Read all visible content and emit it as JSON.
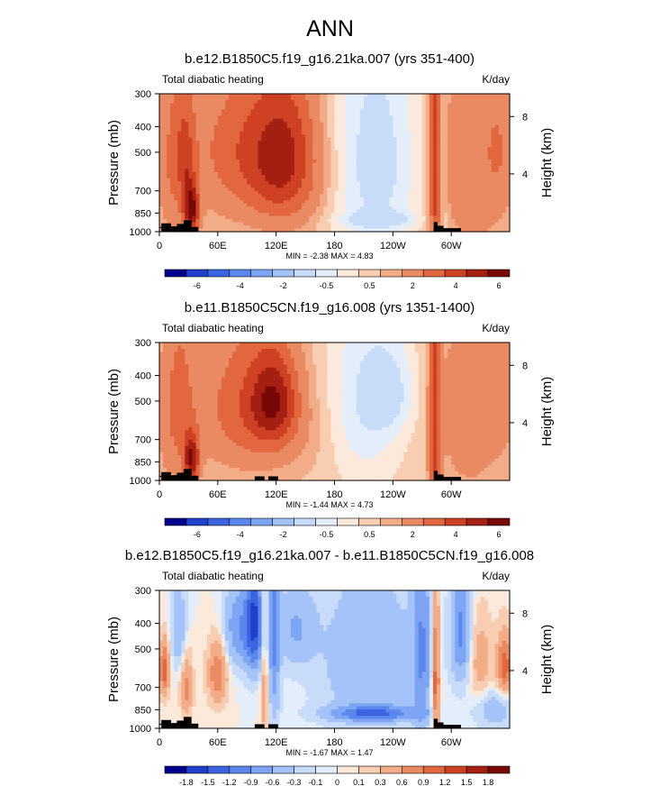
{
  "page_title": "ANN",
  "chart_data": [
    {
      "type": "heatmap",
      "title": "b.e12.B1850C5.f19_g16.21ka.007 (yrs 351-400)",
      "left_label": "Total diabatic heating",
      "units_label": "K/day",
      "ylabel": "Pressure (mb)",
      "ylabel_right": "Height (km)",
      "x_ticks": [
        "0",
        "60E",
        "120E",
        "180",
        "120W",
        "60W"
      ],
      "x_tick_values": [
        0,
        60,
        120,
        180,
        240,
        300
      ],
      "xlim": [
        0,
        360
      ],
      "y_ticks": [
        "300",
        "400",
        "500",
        "700",
        "850",
        "1000"
      ],
      "y_tick_values": [
        300,
        400,
        500,
        700,
        850,
        1000
      ],
      "ylim": [
        1000,
        300
      ],
      "right_ticks": [
        "8",
        "4"
      ],
      "right_tick_pressures": [
        366,
        604
      ],
      "stats_text": "MIN = -2.38  MAX =  4.83",
      "min": -2.38,
      "max": 4.83,
      "colorbar_labels": [
        "-6",
        "-4",
        "-2",
        "-0.5",
        "0.5",
        "2",
        "4",
        "6"
      ],
      "colorbar_colors": [
        "#00008f",
        "#1f3fcc",
        "#3c64e0",
        "#5b86ec",
        "#7ea5f3",
        "#a4c3f8",
        "#c8dcfa",
        "#e4eefb",
        "#fbe9dc",
        "#f8cdb1",
        "#f2ac88",
        "#ea8a62",
        "#e2673f",
        "#cf4123",
        "#a51f12",
        "#780808"
      ],
      "blocks": [
        {
          "x0": 0,
          "x1": 2,
          "p0": 970,
          "p1": 960
        },
        {
          "x0": 2,
          "x1": 12,
          "p0": 1000,
          "p1": 930
        },
        {
          "x0": 12,
          "x1": 18,
          "p0": 1000,
          "p1": 955
        },
        {
          "x0": 18,
          "x1": 25,
          "p0": 1000,
          "p1": 935
        },
        {
          "x0": 25,
          "x1": 33,
          "p0": 1000,
          "p1": 905
        },
        {
          "x0": 33,
          "x1": 40,
          "p0": 1000,
          "p1": 960
        },
        {
          "x0": 282,
          "x1": 286,
          "p0": 1000,
          "p1": 920
        },
        {
          "x0": 286,
          "x1": 292,
          "p0": 1000,
          "p1": 950
        },
        {
          "x0": 292,
          "x1": 310,
          "p0": 1000,
          "p1": 970
        }
      ],
      "features": [
        {
          "lon": 24,
          "p": 490,
          "w": 14,
          "h": 380,
          "v": 1.4
        },
        {
          "lon": 33,
          "p": 840,
          "w": 8,
          "h": 180,
          "v": 4.5
        },
        {
          "lon": 28,
          "p": 560,
          "w": 8,
          "h": 240,
          "v": 1.2
        },
        {
          "lon": 10,
          "p": 560,
          "w": 14,
          "h": 480,
          "v": 1.0
        },
        {
          "lon": 85,
          "p": 450,
          "w": 55,
          "h": 300,
          "v": 2.0
        },
        {
          "lon": 130,
          "p": 520,
          "w": 35,
          "h": 350,
          "v": 3.0
        },
        {
          "lon": 100,
          "p": 720,
          "w": 70,
          "h": 300,
          "v": 0.8
        },
        {
          "lon": 222,
          "p": 560,
          "w": 48,
          "h": 600,
          "v": -1.6
        },
        {
          "lon": 225,
          "p": 900,
          "w": 40,
          "h": 60,
          "v": -1.0
        },
        {
          "lon": 283,
          "p": 600,
          "w": 6,
          "h": 700,
          "v": 3.0
        },
        {
          "lon": 292,
          "p": 600,
          "w": 4,
          "h": 700,
          "v": -0.7
        },
        {
          "lon": 320,
          "p": 560,
          "w": 42,
          "h": 600,
          "v": 1.4
        },
        {
          "lon": 350,
          "p": 480,
          "w": 16,
          "h": 300,
          "v": 1.0
        }
      ]
    },
    {
      "type": "heatmap",
      "title": "b.e11.B1850C5CN.f19_g16.008 (yrs 1351-1400)",
      "left_label": "Total diabatic heating",
      "units_label": "K/day",
      "ylabel": "Pressure (mb)",
      "ylabel_right": "Height (km)",
      "x_ticks": [
        "0",
        "60E",
        "120E",
        "180",
        "120W",
        "60W"
      ],
      "x_tick_values": [
        0,
        60,
        120,
        180,
        240,
        300
      ],
      "xlim": [
        0,
        360
      ],
      "y_ticks": [
        "300",
        "400",
        "500",
        "700",
        "850",
        "1000"
      ],
      "y_tick_values": [
        300,
        400,
        500,
        700,
        850,
        1000
      ],
      "ylim": [
        1000,
        300
      ],
      "right_ticks": [
        "8",
        "4"
      ],
      "right_tick_pressures": [
        366,
        604
      ],
      "stats_text": "MIN = -1.44  MAX =  4.73",
      "min": -1.44,
      "max": 4.73,
      "colorbar_labels": [
        "-6",
        "-4",
        "-2",
        "-0.5",
        "0.5",
        "2",
        "4",
        "6"
      ],
      "colorbar_colors": [
        "#00008f",
        "#1f3fcc",
        "#3c64e0",
        "#5b86ec",
        "#7ea5f3",
        "#a4c3f8",
        "#c8dcfa",
        "#e4eefb",
        "#fbe9dc",
        "#f8cdb1",
        "#f2ac88",
        "#ea8a62",
        "#e2673f",
        "#cf4123",
        "#a51f12",
        "#780808"
      ],
      "blocks": [
        {
          "x0": 0,
          "x1": 2,
          "p0": 970,
          "p1": 960
        },
        {
          "x0": 2,
          "x1": 12,
          "p0": 1000,
          "p1": 930
        },
        {
          "x0": 12,
          "x1": 18,
          "p0": 1000,
          "p1": 955
        },
        {
          "x0": 18,
          "x1": 25,
          "p0": 1000,
          "p1": 935
        },
        {
          "x0": 25,
          "x1": 33,
          "p0": 1000,
          "p1": 905
        },
        {
          "x0": 33,
          "x1": 40,
          "p0": 1000,
          "p1": 960
        },
        {
          "x0": 98,
          "x1": 108,
          "p0": 1000,
          "p1": 965
        },
        {
          "x0": 112,
          "x1": 122,
          "p0": 1000,
          "p1": 965
        },
        {
          "x0": 282,
          "x1": 286,
          "p0": 1000,
          "p1": 920
        },
        {
          "x0": 286,
          "x1": 292,
          "p0": 1000,
          "p1": 950
        },
        {
          "x0": 292,
          "x1": 310,
          "p0": 1000,
          "p1": 970
        }
      ],
      "features": [
        {
          "lon": 24,
          "p": 490,
          "w": 14,
          "h": 380,
          "v": 1.4
        },
        {
          "lon": 33,
          "p": 840,
          "w": 8,
          "h": 180,
          "v": 4.4
        },
        {
          "lon": 10,
          "p": 560,
          "w": 14,
          "h": 480,
          "v": 1.0
        },
        {
          "lon": 90,
          "p": 470,
          "w": 50,
          "h": 320,
          "v": 2.0
        },
        {
          "lon": 118,
          "p": 500,
          "w": 24,
          "h": 200,
          "v": 3.2
        },
        {
          "lon": 105,
          "p": 700,
          "w": 70,
          "h": 300,
          "v": 0.8
        },
        {
          "lon": 210,
          "p": 520,
          "w": 40,
          "h": 450,
          "v": -1.3
        },
        {
          "lon": 240,
          "p": 460,
          "w": 25,
          "h": 180,
          "v": -1.0
        },
        {
          "lon": 283,
          "p": 600,
          "w": 6,
          "h": 700,
          "v": 3.0
        },
        {
          "lon": 320,
          "p": 560,
          "w": 40,
          "h": 600,
          "v": 1.2
        },
        {
          "lon": 352,
          "p": 460,
          "w": 14,
          "h": 260,
          "v": 1.0
        }
      ]
    },
    {
      "type": "heatmap",
      "title": "b.e12.B1850C5.f19_g16.21ka.007 - b.e11.B1850C5CN.f19_g16.008",
      "left_label": "Total diabatic heating",
      "units_label": "K/day",
      "ylabel": "Pressure (mb)",
      "ylabel_right": "Height (km)",
      "x_ticks": [
        "0",
        "60E",
        "120E",
        "180",
        "120W",
        "60W"
      ],
      "x_tick_values": [
        0,
        60,
        120,
        180,
        240,
        300
      ],
      "xlim": [
        0,
        360
      ],
      "y_ticks": [
        "300",
        "400",
        "500",
        "700",
        "850",
        "1000"
      ],
      "y_tick_values": [
        300,
        400,
        500,
        700,
        850,
        1000
      ],
      "ylim": [
        1000,
        300
      ],
      "right_ticks": [
        "8",
        "4"
      ],
      "right_tick_pressures": [
        366,
        604
      ],
      "stats_text": "MIN = -1.67  MAX =  1.47",
      "min": -1.67,
      "max": 1.47,
      "colorbar_labels": [
        "-1.8",
        "-1.5",
        "-1.2",
        "-0.9",
        "-0.6",
        "-0.3",
        "-0.1",
        "0",
        "0.1",
        "0.3",
        "0.6",
        "0.9",
        "1.2",
        "1.5",
        "1.8"
      ],
      "colorbar_colors": [
        "#00008f",
        "#1f3fcc",
        "#3c64e0",
        "#5b86ec",
        "#7ea5f3",
        "#a4c3f8",
        "#c8dcfa",
        "#e4eefb",
        "#fbe9dc",
        "#f8cdb1",
        "#f2ac88",
        "#ea8a62",
        "#e2673f",
        "#cf4123",
        "#a51f12",
        "#780808"
      ],
      "blocks": [
        {
          "x0": 0,
          "x1": 2,
          "p0": 970,
          "p1": 960
        },
        {
          "x0": 2,
          "x1": 12,
          "p0": 1000,
          "p1": 930
        },
        {
          "x0": 12,
          "x1": 18,
          "p0": 1000,
          "p1": 955
        },
        {
          "x0": 18,
          "x1": 25,
          "p0": 1000,
          "p1": 935
        },
        {
          "x0": 25,
          "x1": 33,
          "p0": 1000,
          "p1": 905
        },
        {
          "x0": 33,
          "x1": 40,
          "p0": 1000,
          "p1": 960
        },
        {
          "x0": 98,
          "x1": 108,
          "p0": 1000,
          "p1": 965
        },
        {
          "x0": 112,
          "x1": 122,
          "p0": 1000,
          "p1": 965
        },
        {
          "x0": 282,
          "x1": 286,
          "p0": 1000,
          "p1": 920
        },
        {
          "x0": 286,
          "x1": 292,
          "p0": 1000,
          "p1": 950
        },
        {
          "x0": 292,
          "x1": 310,
          "p0": 1000,
          "p1": 970
        }
      ],
      "features": [
        {
          "lon": 5,
          "p": 600,
          "w": 5,
          "h": 140,
          "v": 1.1
        },
        {
          "lon": 20,
          "p": 420,
          "w": 8,
          "h": 160,
          "v": -0.6
        },
        {
          "lon": 28,
          "p": 700,
          "w": 6,
          "h": 200,
          "v": 0.7
        },
        {
          "lon": 60,
          "p": 620,
          "w": 10,
          "h": 170,
          "v": 0.9
        },
        {
          "lon": 80,
          "p": 420,
          "w": 15,
          "h": 160,
          "v": -0.8
        },
        {
          "lon": 98,
          "p": 400,
          "w": 10,
          "h": 200,
          "v": -1.5
        },
        {
          "lon": 108,
          "p": 500,
          "w": 4,
          "h": 600,
          "v": 0.6
        },
        {
          "lon": 118,
          "p": 450,
          "w": 6,
          "h": 450,
          "v": -0.9
        },
        {
          "lon": 140,
          "p": 420,
          "w": 20,
          "h": 150,
          "v": -0.6
        },
        {
          "lon": 215,
          "p": 560,
          "w": 50,
          "h": 400,
          "v": -0.6
        },
        {
          "lon": 220,
          "p": 880,
          "w": 45,
          "h": 60,
          "v": -1.1
        },
        {
          "lon": 270,
          "p": 500,
          "w": 10,
          "h": 500,
          "v": -0.8
        },
        {
          "lon": 284,
          "p": 650,
          "w": 4,
          "h": 400,
          "v": 1.2
        },
        {
          "lon": 310,
          "p": 430,
          "w": 10,
          "h": 220,
          "v": -1.0
        },
        {
          "lon": 330,
          "p": 560,
          "w": 12,
          "h": 200,
          "v": 0.5
        },
        {
          "lon": 355,
          "p": 580,
          "w": 8,
          "h": 150,
          "v": 1.1
        },
        {
          "lon": 345,
          "p": 850,
          "w": 20,
          "h": 150,
          "v": -0.5
        }
      ]
    }
  ]
}
